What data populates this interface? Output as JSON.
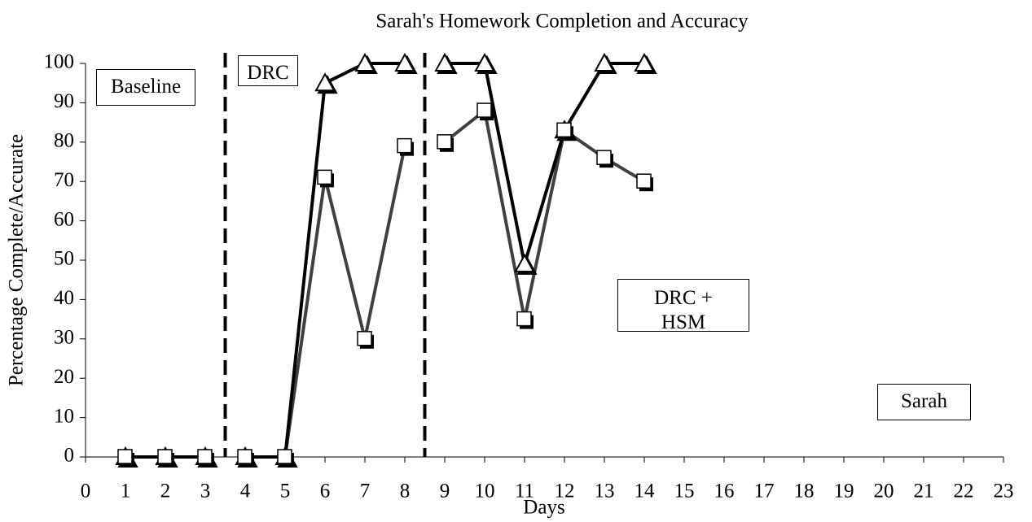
{
  "chart_data": {
    "type": "line",
    "title": "Sarah's Homework Completion and Accuracy",
    "xlabel": "Days",
    "ylabel": "Percentage Complete/Accurate",
    "x": [
      1,
      2,
      3,
      4,
      5,
      6,
      7,
      8,
      9,
      10,
      11,
      12,
      13,
      14
    ],
    "series": [
      {
        "color": "#000000",
        "marker": "triangle",
        "values": [
          0,
          0,
          0,
          0,
          0,
          95,
          100,
          100,
          100,
          100,
          49,
          83,
          100,
          100
        ]
      },
      {
        "color": "#404040",
        "marker": "square",
        "values": [
          0,
          0,
          0,
          0,
          0,
          71,
          30,
          79,
          80,
          88,
          35,
          83,
          76,
          70
        ]
      }
    ],
    "phase_lines": [
      3.5,
      8.5
    ],
    "annotations": [
      "Baseline",
      "DRC",
      "DRC + HSM",
      "Sarah"
    ],
    "xlim": [
      0,
      23
    ],
    "xticks": [
      0,
      1,
      2,
      3,
      4,
      5,
      6,
      7,
      8,
      9,
      10,
      11,
      12,
      13,
      14,
      15,
      16,
      17,
      18,
      19,
      20,
      21,
      22,
      23
    ],
    "ylim": [
      0,
      100
    ],
    "yticks": [
      0,
      10,
      20,
      30,
      40,
      50,
      60,
      70,
      80,
      90,
      100
    ]
  }
}
